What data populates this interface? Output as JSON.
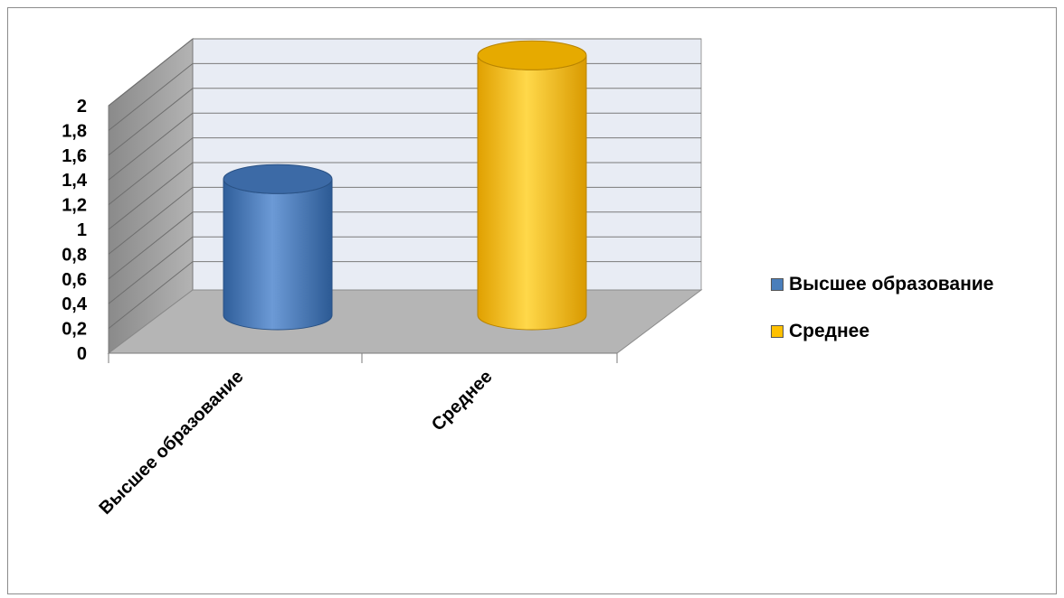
{
  "chart_data": {
    "type": "bar",
    "categories": [
      "Высшее образование",
      "Среднее"
    ],
    "values": [
      1.1,
      2.1
    ],
    "ylim": [
      0,
      2
    ],
    "y_ticks": [
      "0",
      "0,2",
      "0,4",
      "0,6",
      "0,8",
      "1",
      "1,2",
      "1,4",
      "1,6",
      "1,8",
      "2"
    ],
    "grid": true,
    "legend_position": "right",
    "colors": {
      "Высшее образование": "#4a7ebb",
      "Среднее": "#ffc000"
    },
    "style": "3d-cylinder"
  },
  "legend": {
    "items": [
      {
        "label": "Высшее образование",
        "color": "#4a7ebb"
      },
      {
        "label": "Среднее",
        "color": "#ffc000"
      }
    ]
  }
}
